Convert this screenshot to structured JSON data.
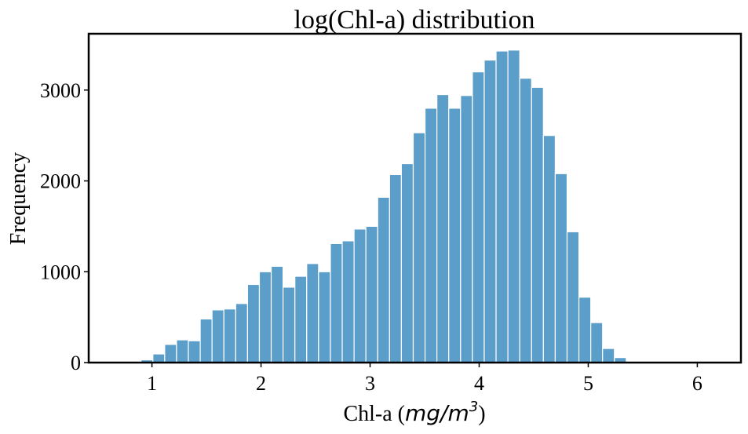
{
  "chart_data": {
    "type": "histogram",
    "title": "log(Chl-a) distribution",
    "xlabel_prefix": "Chl-a (",
    "xlabel_unit": "mg/m",
    "xlabel_exponent": "3",
    "xlabel_suffix": ")",
    "ylabel": "Frequency",
    "xlim": [
      0.42,
      6.4
    ],
    "ylim": [
      0,
      3620
    ],
    "x_ticks": [
      1,
      2,
      3,
      4,
      5,
      6
    ],
    "y_ticks": [
      0,
      1000,
      2000,
      3000
    ],
    "bin_start": 0.9,
    "bin_width": 0.1085,
    "values": [
      30,
      95,
      200,
      250,
      240,
      480,
      580,
      590,
      650,
      860,
      1000,
      1060,
      830,
      950,
      1090,
      1000,
      1310,
      1340,
      1470,
      1500,
      1820,
      2070,
      2190,
      2530,
      2800,
      2950,
      2800,
      2940,
      3200,
      3330,
      3430,
      3440,
      3130,
      3030,
      2500,
      2080,
      1440,
      720,
      440,
      155,
      55
    ],
    "bar_color": "#5b9ec9",
    "bar_edge_color": "#ffffff",
    "grid": false
  }
}
